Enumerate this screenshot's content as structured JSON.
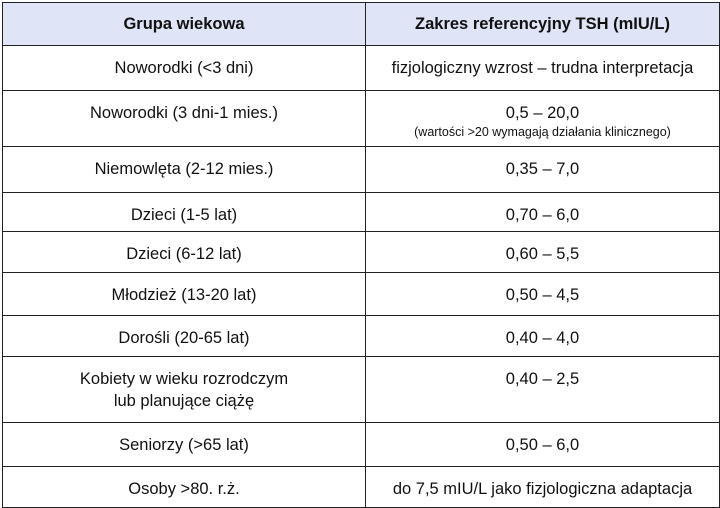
{
  "table": {
    "header": [
      "Grupa wiekowa",
      "Zakres referencyjny TSH (mIU/L)"
    ],
    "rows": [
      [
        [
          "Noworodki (<3 dni)"
        ],
        [
          "fizjologiczny wzrost – trudna interpretacja"
        ]
      ],
      [
        [
          "Noworodki (3 dni-1 mies.)"
        ],
        [
          "0,5 – 20,0",
          "(wartości >20 wymagają działania klinicznego)"
        ]
      ],
      [
        [
          "Niemowlęta (2-12 mies.)"
        ],
        [
          "0,35 – 7,0"
        ]
      ],
      [
        [
          "Dzieci (1-5 lat)"
        ],
        [
          "0,70 – 6,0"
        ]
      ],
      [
        [
          "Dzieci (6-12 lat)"
        ],
        [
          "0,60 – 5,5"
        ]
      ],
      [
        [
          "Młodzież (13-20 lat)"
        ],
        [
          "0,50 – 4,5"
        ]
      ],
      [
        [
          "Dorośli (20-65 lat)"
        ],
        [
          "0,40 – 4,0"
        ]
      ],
      [
        [
          "Kobiety w wieku rozrodczym",
          "lub planujące ciążę"
        ],
        [
          "0,40 – 2,5"
        ]
      ],
      [
        [
          "Seniorzy (>65 lat)"
        ],
        [
          "0,50 – 6,0"
        ]
      ],
      [
        [
          "Osoby >80. r.ż."
        ],
        [
          "do 7,5 mIU/L jako fizjologiczna adaptacja"
        ]
      ]
    ]
  }
}
